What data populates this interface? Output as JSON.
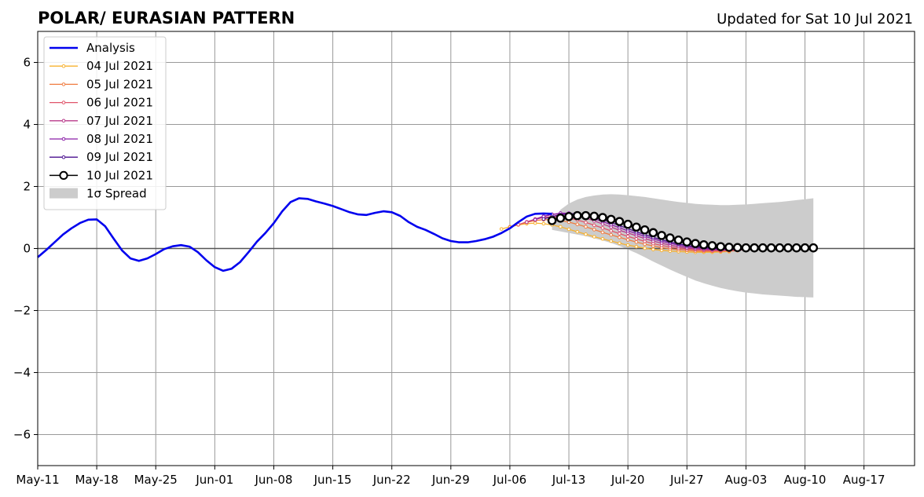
{
  "title": "POLAR/ EURASIAN  PATTERN",
  "updated_label": "Updated for Sat 10 Jul 2021",
  "colors": {
    "analysis": "#0000ee",
    "spread": "#cccccc",
    "grid": "#999999",
    "zero_line": "#555555"
  },
  "chart_data": {
    "type": "line",
    "x_axis_type": "date",
    "xlim": [
      "2021-05-11",
      "2021-08-23"
    ],
    "ylim": [
      -7,
      7
    ],
    "x_ticks": [
      {
        "date": "2021-05-11",
        "label": "May-11"
      },
      {
        "date": "2021-05-18",
        "label": "May-18"
      },
      {
        "date": "2021-05-25",
        "label": "May-25"
      },
      {
        "date": "2021-06-01",
        "label": "Jun-01"
      },
      {
        "date": "2021-06-08",
        "label": "Jun-08"
      },
      {
        "date": "2021-06-15",
        "label": "Jun-15"
      },
      {
        "date": "2021-06-22",
        "label": "Jun-22"
      },
      {
        "date": "2021-06-29",
        "label": "Jun-29"
      },
      {
        "date": "2021-07-06",
        "label": "Jul-06"
      },
      {
        "date": "2021-07-13",
        "label": "Jul-13"
      },
      {
        "date": "2021-07-20",
        "label": "Jul-20"
      },
      {
        "date": "2021-07-27",
        "label": "Jul-27"
      },
      {
        "date": "2021-08-03",
        "label": "Aug-03"
      },
      {
        "date": "2021-08-10",
        "label": "Aug-10"
      },
      {
        "date": "2021-08-17",
        "label": "Aug-17"
      }
    ],
    "y_ticks": [
      {
        "value": 6,
        "label": "6"
      },
      {
        "value": 4,
        "label": "4"
      },
      {
        "value": 2,
        "label": "2"
      },
      {
        "value": 0,
        "label": "0"
      },
      {
        "value": -2,
        "label": "−2"
      },
      {
        "value": -4,
        "label": "−4"
      },
      {
        "value": -6,
        "label": "−6"
      }
    ],
    "grid": true,
    "legend_position": "top-left",
    "analysis": {
      "name": "Analysis",
      "color": "#0000ee",
      "start": "2021-05-11",
      "values": [
        -0.28,
        -0.05,
        0.2,
        0.45,
        0.65,
        0.82,
        0.93,
        0.94,
        0.72,
        0.32,
        -0.06,
        -0.32,
        -0.4,
        -0.32,
        -0.18,
        -0.02,
        0.07,
        0.11,
        0.06,
        -0.12,
        -0.38,
        -0.6,
        -0.72,
        -0.65,
        -0.44,
        -0.12,
        0.22,
        0.5,
        0.82,
        1.2,
        1.5,
        1.62,
        1.6,
        1.52,
        1.45,
        1.37,
        1.27,
        1.17,
        1.1,
        1.08,
        1.15,
        1.2,
        1.17,
        1.05,
        0.85,
        0.7,
        0.6,
        0.47,
        0.33,
        0.24,
        0.2,
        0.2,
        0.24,
        0.3,
        0.38,
        0.5,
        0.65,
        0.85,
        1.03,
        1.12,
        1.13,
        1.12
      ]
    },
    "forecasts": [
      {
        "name": "04 Jul 2021",
        "color": "#f7b22f",
        "start": "2021-07-05",
        "values": [
          0.63,
          0.7,
          0.76,
          0.8,
          0.82,
          0.8,
          0.76,
          0.7,
          0.62,
          0.54,
          0.46,
          0.38,
          0.31,
          0.24,
          0.17,
          0.11,
          0.06,
          0.01,
          -0.03,
          -0.06,
          -0.08,
          -0.1,
          -0.11,
          -0.12,
          -0.12,
          -0.12,
          -0.11,
          -0.1
        ]
      },
      {
        "name": "05 Jul 2021",
        "color": "#f07c40",
        "start": "2021-07-06",
        "values": [
          0.69,
          0.77,
          0.84,
          0.9,
          0.93,
          0.93,
          0.9,
          0.85,
          0.78,
          0.7,
          0.61,
          0.52,
          0.44,
          0.36,
          0.28,
          0.21,
          0.14,
          0.08,
          0.03,
          -0.01,
          -0.04,
          -0.06,
          -0.08,
          -0.09,
          -0.09,
          -0.09,
          -0.08,
          -0.07
        ]
      },
      {
        "name": "06 Jul 2021",
        "color": "#e0556a",
        "start": "2021-07-07",
        "values": [
          0.77,
          0.86,
          0.94,
          1.0,
          1.03,
          1.02,
          0.98,
          0.92,
          0.84,
          0.75,
          0.66,
          0.57,
          0.48,
          0.39,
          0.31,
          0.23,
          0.16,
          0.1,
          0.05,
          0.01,
          -0.02,
          -0.04,
          -0.06,
          -0.07,
          -0.07,
          -0.06,
          -0.05,
          -0.04
        ]
      },
      {
        "name": "07 Jul 2021",
        "color": "#b8398a",
        "start": "2021-07-08",
        "values": [
          0.85,
          0.95,
          1.04,
          1.1,
          1.12,
          1.1,
          1.05,
          0.98,
          0.89,
          0.79,
          0.69,
          0.59,
          0.5,
          0.41,
          0.32,
          0.24,
          0.17,
          0.11,
          0.06,
          0.02,
          -0.01,
          -0.03,
          -0.04,
          -0.05,
          -0.05,
          -0.04,
          -0.03,
          -0.02
        ]
      },
      {
        "name": "08 Jul 2021",
        "color": "#8b1fa8",
        "start": "2021-07-09",
        "values": [
          0.93,
          1.03,
          1.1,
          1.14,
          1.14,
          1.1,
          1.04,
          0.96,
          0.87,
          0.77,
          0.67,
          0.57,
          0.48,
          0.39,
          0.31,
          0.23,
          0.17,
          0.11,
          0.06,
          0.03,
          0.0,
          -0.02,
          -0.03,
          -0.03,
          -0.03,
          -0.02,
          -0.01,
          0.0
        ]
      },
      {
        "name": "09 Jul 2021",
        "color": "#4a0f8f",
        "start": "2021-07-10",
        "values": [
          0.95,
          1.03,
          1.09,
          1.12,
          1.11,
          1.07,
          1.01,
          0.93,
          0.84,
          0.74,
          0.64,
          0.54,
          0.45,
          0.36,
          0.28,
          0.21,
          0.15,
          0.1,
          0.06,
          0.03,
          0.01,
          0.0,
          -0.01,
          -0.01,
          0.0,
          0.01,
          0.01,
          0.02
        ]
      },
      {
        "name": "10 Jul 2021",
        "color": "#000000",
        "start": "2021-07-11",
        "marker": "large-circle",
        "values": [
          0.9,
          0.98,
          1.03,
          1.06,
          1.06,
          1.04,
          1.0,
          0.94,
          0.87,
          0.78,
          0.69,
          0.6,
          0.51,
          0.42,
          0.34,
          0.27,
          0.21,
          0.16,
          0.12,
          0.09,
          0.06,
          0.04,
          0.03,
          0.02,
          0.02,
          0.02,
          0.02,
          0.02,
          0.02,
          0.02,
          0.02,
          0.02
        ]
      }
    ],
    "spread": {
      "name": "1σ Spread",
      "color": "#cccccc",
      "start": "2021-07-11",
      "upper": [
        0.75,
        1.25,
        1.45,
        1.58,
        1.66,
        1.71,
        1.74,
        1.75,
        1.74,
        1.72,
        1.69,
        1.66,
        1.62,
        1.58,
        1.54,
        1.5,
        1.47,
        1.44,
        1.42,
        1.41,
        1.4,
        1.4,
        1.41,
        1.42,
        1.44,
        1.46,
        1.48,
        1.5,
        1.53,
        1.56,
        1.59,
        1.62
      ],
      "lower": [
        0.6,
        0.55,
        0.5,
        0.45,
        0.4,
        0.33,
        0.26,
        0.18,
        0.08,
        -0.03,
        -0.15,
        -0.28,
        -0.42,
        -0.55,
        -0.68,
        -0.8,
        -0.92,
        -1.03,
        -1.12,
        -1.2,
        -1.27,
        -1.33,
        -1.38,
        -1.42,
        -1.45,
        -1.48,
        -1.5,
        -1.52,
        -1.54,
        -1.56,
        -1.57,
        -1.58
      ]
    }
  }
}
